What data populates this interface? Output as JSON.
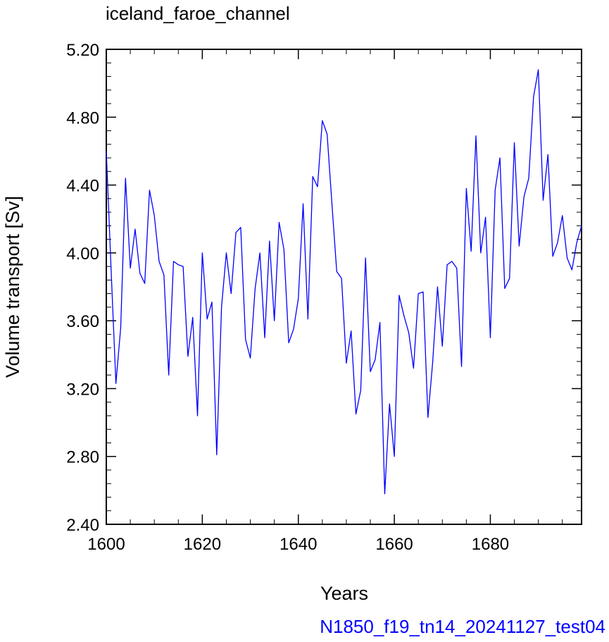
{
  "chart_data": {
    "type": "line",
    "title": "iceland_faroe_channel",
    "xlabel": "Years",
    "ylabel": "Volume transport [Sv]",
    "caption": "N1850_f19_tn14_20241127_test04",
    "xlim": [
      1600,
      1699
    ],
    "ylim": [
      2.4,
      5.2
    ],
    "xticks": [
      "1600",
      "1620",
      "1640",
      "1660",
      "1680"
    ],
    "yticks": [
      "2.40",
      "2.80",
      "3.20",
      "3.60",
      "4.00",
      "4.40",
      "4.80",
      "5.20"
    ],
    "grid": false,
    "series": [
      {
        "color": "#0000ff",
        "x": [
          1600,
          1601,
          1602,
          1603,
          1604,
          1605,
          1606,
          1607,
          1608,
          1609,
          1610,
          1611,
          1612,
          1613,
          1614,
          1615,
          1616,
          1617,
          1618,
          1619,
          1620,
          1621,
          1622,
          1623,
          1624,
          1625,
          1626,
          1627,
          1628,
          1629,
          1630,
          1631,
          1632,
          1633,
          1634,
          1635,
          1636,
          1637,
          1638,
          1639,
          1640,
          1641,
          1642,
          1643,
          1644,
          1645,
          1646,
          1647,
          1648,
          1649,
          1650,
          1651,
          1652,
          1653,
          1654,
          1655,
          1656,
          1657,
          1658,
          1659,
          1660,
          1661,
          1662,
          1663,
          1664,
          1665,
          1666,
          1667,
          1668,
          1669,
          1670,
          1671,
          1672,
          1673,
          1674,
          1675,
          1676,
          1677,
          1678,
          1679,
          1680,
          1681,
          1682,
          1683,
          1684,
          1685,
          1686,
          1687,
          1688,
          1689,
          1690,
          1691,
          1692,
          1693,
          1694,
          1695,
          1696,
          1697,
          1698,
          1699
        ],
        "y": [
          4.6,
          3.9,
          3.23,
          3.56,
          4.44,
          3.91,
          4.14,
          3.88,
          3.82,
          4.37,
          4.22,
          3.95,
          3.87,
          3.28,
          3.95,
          3.93,
          3.92,
          3.39,
          3.62,
          3.04,
          4.0,
          3.61,
          3.71,
          2.81,
          3.68,
          4.0,
          3.76,
          4.12,
          4.15,
          3.49,
          3.38,
          3.79,
          4.0,
          3.5,
          4.07,
          3.6,
          4.18,
          4.02,
          3.47,
          3.55,
          3.73,
          4.29,
          3.61,
          4.45,
          4.39,
          4.78,
          4.7,
          4.29,
          3.89,
          3.85,
          3.35,
          3.54,
          3.05,
          3.19,
          3.97,
          3.3,
          3.37,
          3.59,
          2.58,
          3.11,
          2.8,
          3.75,
          3.63,
          3.53,
          3.32,
          3.76,
          3.77,
          3.03,
          3.36,
          3.8,
          3.45,
          3.93,
          3.95,
          3.91,
          3.33,
          4.38,
          4.01,
          4.69,
          4.0,
          4.21,
          3.5,
          4.37,
          4.56,
          3.79,
          3.85,
          4.65,
          4.04,
          4.33,
          4.44,
          4.92,
          5.08,
          4.31,
          4.58,
          3.98,
          4.06,
          4.22,
          3.97,
          3.9,
          4.06,
          4.16
        ]
      }
    ]
  }
}
